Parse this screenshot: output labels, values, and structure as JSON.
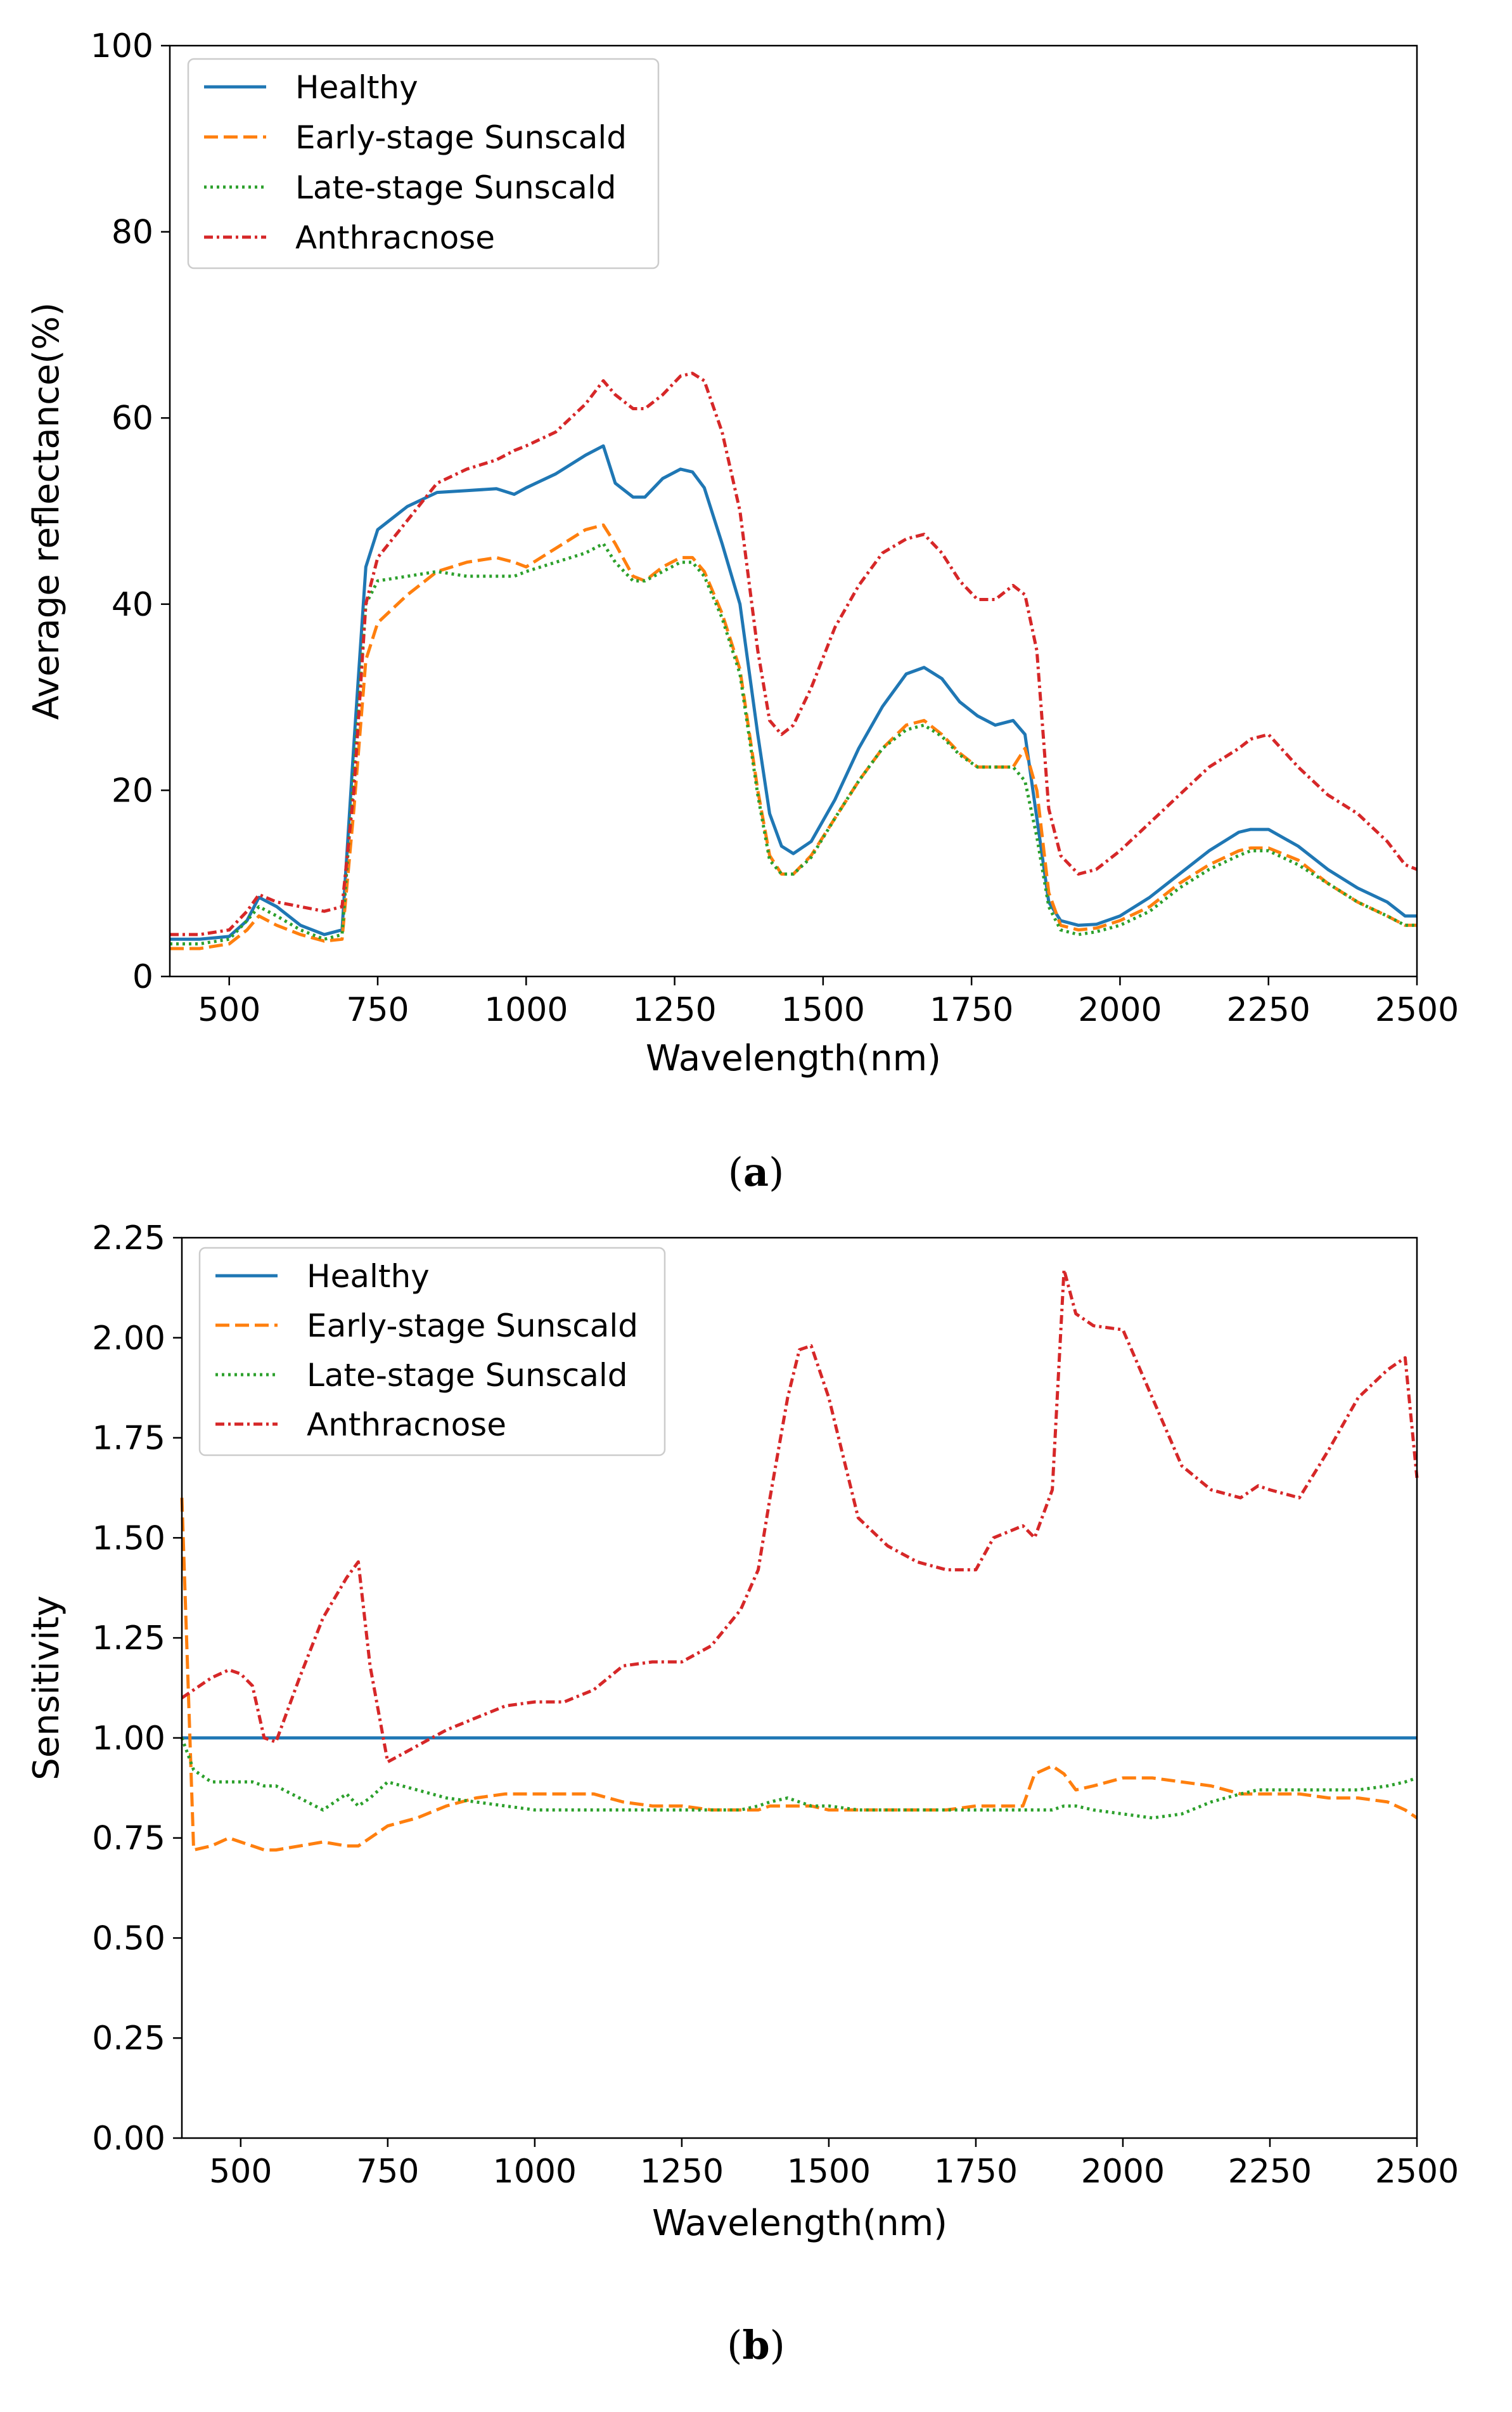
{
  "figure": {
    "caption_a": "a",
    "caption_b": "b"
  },
  "chart_data": [
    {
      "type": "line",
      "panel": "a",
      "title": "",
      "xlabel": "Wavelength(nm)",
      "ylabel": "Average reflectance(%)",
      "xlim": [
        400,
        2500
      ],
      "ylim": [
        0,
        100
      ],
      "xticks": [
        500,
        750,
        1000,
        1250,
        1500,
        1750,
        2000,
        2250,
        2500
      ],
      "xtick_labels": [
        "500",
        "750",
        "1000",
        "1250",
        "1500",
        "1750",
        "2000",
        "2250",
        "2500"
      ],
      "yticks": [
        0,
        20,
        40,
        60,
        80,
        100
      ],
      "ytick_labels": [
        "0",
        "20",
        "40",
        "60",
        "80",
        "100"
      ],
      "legend_position": "top-left",
      "x": [
        400,
        450,
        500,
        530,
        550,
        580,
        620,
        660,
        690,
        710,
        730,
        750,
        800,
        850,
        900,
        950,
        980,
        1000,
        1050,
        1100,
        1130,
        1150,
        1180,
        1200,
        1230,
        1260,
        1280,
        1300,
        1330,
        1360,
        1390,
        1410,
        1430,
        1450,
        1480,
        1520,
        1560,
        1600,
        1640,
        1670,
        1700,
        1730,
        1760,
        1790,
        1820,
        1840,
        1860,
        1880,
        1900,
        1930,
        1960,
        2000,
        2050,
        2100,
        2150,
        2200,
        2220,
        2250,
        2300,
        2350,
        2400,
        2450,
        2480,
        2500
      ],
      "series": [
        {
          "name": "Healthy",
          "color": "#1f77b4",
          "dash": "solid",
          "values": [
            4.0,
            4.0,
            4.3,
            6.0,
            8.5,
            7.5,
            5.5,
            4.5,
            5.0,
            25.0,
            44.0,
            48.0,
            50.5,
            52.0,
            52.2,
            52.4,
            51.8,
            52.5,
            54.0,
            56.0,
            57.0,
            53.0,
            51.5,
            51.5,
            53.5,
            54.5,
            54.2,
            52.5,
            46.5,
            40.0,
            26.0,
            17.5,
            14.0,
            13.2,
            14.5,
            19.0,
            24.5,
            29.0,
            32.5,
            33.2,
            32.0,
            29.5,
            28.0,
            27.0,
            27.5,
            26.0,
            17.0,
            8.0,
            6.0,
            5.5,
            5.6,
            6.5,
            8.5,
            11.0,
            13.5,
            15.5,
            15.8,
            15.8,
            14.0,
            11.5,
            9.5,
            8.0,
            6.5,
            6.5
          ]
        },
        {
          "name": "Early-stage Sunscald",
          "color": "#ff7f0e",
          "dash": "dashed",
          "values": [
            3.0,
            3.0,
            3.5,
            5.0,
            6.5,
            5.5,
            4.5,
            3.8,
            4.0,
            18.0,
            34.0,
            38.0,
            41.0,
            43.5,
            44.5,
            45.0,
            44.5,
            44.0,
            46.0,
            48.0,
            48.5,
            46.5,
            43.0,
            42.5,
            44.0,
            45.0,
            45.0,
            43.5,
            39.0,
            33.0,
            20.0,
            13.0,
            11.0,
            11.0,
            13.0,
            17.0,
            21.0,
            24.5,
            27.0,
            27.5,
            26.0,
            24.0,
            22.5,
            22.5,
            22.5,
            24.5,
            20.0,
            9.0,
            5.5,
            5.0,
            5.2,
            6.0,
            7.5,
            10.0,
            12.0,
            13.5,
            13.8,
            13.8,
            12.5,
            10.0,
            8.0,
            6.5,
            5.5,
            5.5
          ]
        },
        {
          "name": "Late-stage Sunscald",
          "color": "#2ca02c",
          "dash": "dotted",
          "values": [
            3.5,
            3.5,
            4.0,
            6.0,
            7.5,
            6.5,
            5.0,
            4.0,
            4.5,
            22.0,
            40.0,
            42.5,
            43.0,
            43.5,
            43.0,
            43.0,
            43.0,
            43.5,
            44.5,
            45.5,
            46.5,
            44.5,
            42.5,
            42.5,
            43.5,
            44.5,
            44.5,
            43.0,
            38.5,
            32.5,
            19.5,
            12.5,
            11.0,
            11.0,
            12.8,
            17.0,
            21.0,
            24.5,
            26.5,
            27.0,
            25.8,
            23.8,
            22.5,
            22.5,
            22.5,
            21.0,
            15.0,
            7.5,
            5.0,
            4.5,
            4.8,
            5.5,
            7.0,
            9.5,
            11.5,
            13.0,
            13.5,
            13.5,
            12.0,
            10.0,
            8.0,
            6.5,
            5.5,
            5.5
          ]
        },
        {
          "name": "Anthracnose",
          "color": "#d62728",
          "dash": "dashdot",
          "values": [
            4.5,
            4.5,
            5.0,
            7.0,
            8.8,
            8.0,
            7.5,
            7.0,
            7.5,
            20.0,
            40.0,
            45.0,
            49.0,
            53.0,
            54.5,
            55.5,
            56.5,
            57.0,
            58.5,
            61.5,
            64.0,
            62.5,
            61.0,
            61.0,
            62.5,
            64.5,
            64.8,
            64.0,
            58.5,
            50.0,
            35.0,
            27.5,
            26.0,
            27.0,
            31.0,
            37.5,
            42.0,
            45.5,
            47.0,
            47.5,
            45.5,
            42.5,
            40.5,
            40.5,
            42.0,
            41.0,
            35.0,
            18.0,
            13.0,
            11.0,
            11.5,
            13.5,
            16.5,
            19.5,
            22.5,
            24.5,
            25.5,
            26.0,
            22.5,
            19.5,
            17.5,
            14.5,
            12.0,
            11.5
          ]
        }
      ]
    },
    {
      "type": "line",
      "panel": "b",
      "title": "",
      "xlabel": "Wavelength(nm)",
      "ylabel": "Sensitivity",
      "xlim": [
        400,
        2500
      ],
      "ylim": [
        0.0,
        2.25
      ],
      "xticks": [
        500,
        750,
        1000,
        1250,
        1500,
        1750,
        2000,
        2250,
        2500
      ],
      "xtick_labels": [
        "500",
        "750",
        "1000",
        "1250",
        "1500",
        "1750",
        "2000",
        "2250",
        "2500"
      ],
      "yticks": [
        0.0,
        0.25,
        0.5,
        0.75,
        1.0,
        1.25,
        1.5,
        1.75,
        2.0,
        2.25
      ],
      "ytick_labels": [
        "0.00",
        "0.25",
        "0.50",
        "0.75",
        "1.00",
        "1.25",
        "1.50",
        "1.75",
        "2.00",
        "2.25"
      ],
      "legend_position": "top-left",
      "x": [
        400,
        420,
        450,
        480,
        500,
        520,
        540,
        560,
        600,
        640,
        680,
        700,
        720,
        750,
        800,
        850,
        900,
        950,
        1000,
        1050,
        1100,
        1150,
        1200,
        1250,
        1300,
        1350,
        1380,
        1400,
        1430,
        1450,
        1470,
        1500,
        1550,
        1600,
        1650,
        1700,
        1750,
        1780,
        1830,
        1850,
        1880,
        1900,
        1920,
        1950,
        2000,
        2050,
        2100,
        2150,
        2200,
        2230,
        2250,
        2300,
        2350,
        2400,
        2450,
        2480,
        2500
      ],
      "series": [
        {
          "name": "Healthy",
          "color": "#1f77b4",
          "dash": "solid",
          "values": [
            1.0,
            1.0,
            1.0,
            1.0,
            1.0,
            1.0,
            1.0,
            1.0,
            1.0,
            1.0,
            1.0,
            1.0,
            1.0,
            1.0,
            1.0,
            1.0,
            1.0,
            1.0,
            1.0,
            1.0,
            1.0,
            1.0,
            1.0,
            1.0,
            1.0,
            1.0,
            1.0,
            1.0,
            1.0,
            1.0,
            1.0,
            1.0,
            1.0,
            1.0,
            1.0,
            1.0,
            1.0,
            1.0,
            1.0,
            1.0,
            1.0,
            1.0,
            1.0,
            1.0,
            1.0,
            1.0,
            1.0,
            1.0,
            1.0,
            1.0,
            1.0,
            1.0,
            1.0,
            1.0,
            1.0,
            1.0,
            1.0
          ]
        },
        {
          "name": "Early-stage Sunscald",
          "color": "#ff7f0e",
          "dash": "dashed",
          "values": [
            1.6,
            0.72,
            0.73,
            0.75,
            0.74,
            0.73,
            0.72,
            0.72,
            0.73,
            0.74,
            0.73,
            0.73,
            0.75,
            0.78,
            0.8,
            0.83,
            0.85,
            0.86,
            0.86,
            0.86,
            0.86,
            0.84,
            0.83,
            0.83,
            0.82,
            0.82,
            0.82,
            0.83,
            0.83,
            0.83,
            0.83,
            0.82,
            0.82,
            0.82,
            0.82,
            0.82,
            0.83,
            0.83,
            0.83,
            0.91,
            0.93,
            0.91,
            0.87,
            0.88,
            0.9,
            0.9,
            0.89,
            0.88,
            0.86,
            0.86,
            0.86,
            0.86,
            0.85,
            0.85,
            0.84,
            0.82,
            0.8
          ]
        },
        {
          "name": "Late-stage Sunscald",
          "color": "#2ca02c",
          "dash": "dotted",
          "values": [
            1.0,
            0.92,
            0.89,
            0.89,
            0.89,
            0.89,
            0.88,
            0.88,
            0.85,
            0.82,
            0.86,
            0.83,
            0.85,
            0.89,
            0.87,
            0.85,
            0.84,
            0.83,
            0.82,
            0.82,
            0.82,
            0.82,
            0.82,
            0.82,
            0.82,
            0.82,
            0.83,
            0.84,
            0.85,
            0.84,
            0.83,
            0.83,
            0.82,
            0.82,
            0.82,
            0.82,
            0.82,
            0.82,
            0.82,
            0.82,
            0.82,
            0.83,
            0.83,
            0.82,
            0.81,
            0.8,
            0.81,
            0.84,
            0.86,
            0.87,
            0.87,
            0.87,
            0.87,
            0.87,
            0.88,
            0.89,
            0.9
          ]
        },
        {
          "name": "Anthracnose",
          "color": "#d62728",
          "dash": "dashdot",
          "values": [
            1.1,
            1.12,
            1.15,
            1.17,
            1.16,
            1.13,
            1.0,
            0.99,
            1.15,
            1.3,
            1.4,
            1.44,
            1.18,
            0.94,
            0.98,
            1.02,
            1.05,
            1.08,
            1.09,
            1.09,
            1.12,
            1.18,
            1.19,
            1.19,
            1.23,
            1.32,
            1.42,
            1.6,
            1.85,
            1.97,
            1.98,
            1.85,
            1.55,
            1.48,
            1.44,
            1.42,
            1.42,
            1.5,
            1.53,
            1.5,
            1.62,
            2.17,
            2.06,
            2.03,
            2.02,
            1.85,
            1.68,
            1.62,
            1.6,
            1.63,
            1.62,
            1.6,
            1.72,
            1.85,
            1.92,
            1.95,
            1.65
          ]
        }
      ]
    }
  ]
}
